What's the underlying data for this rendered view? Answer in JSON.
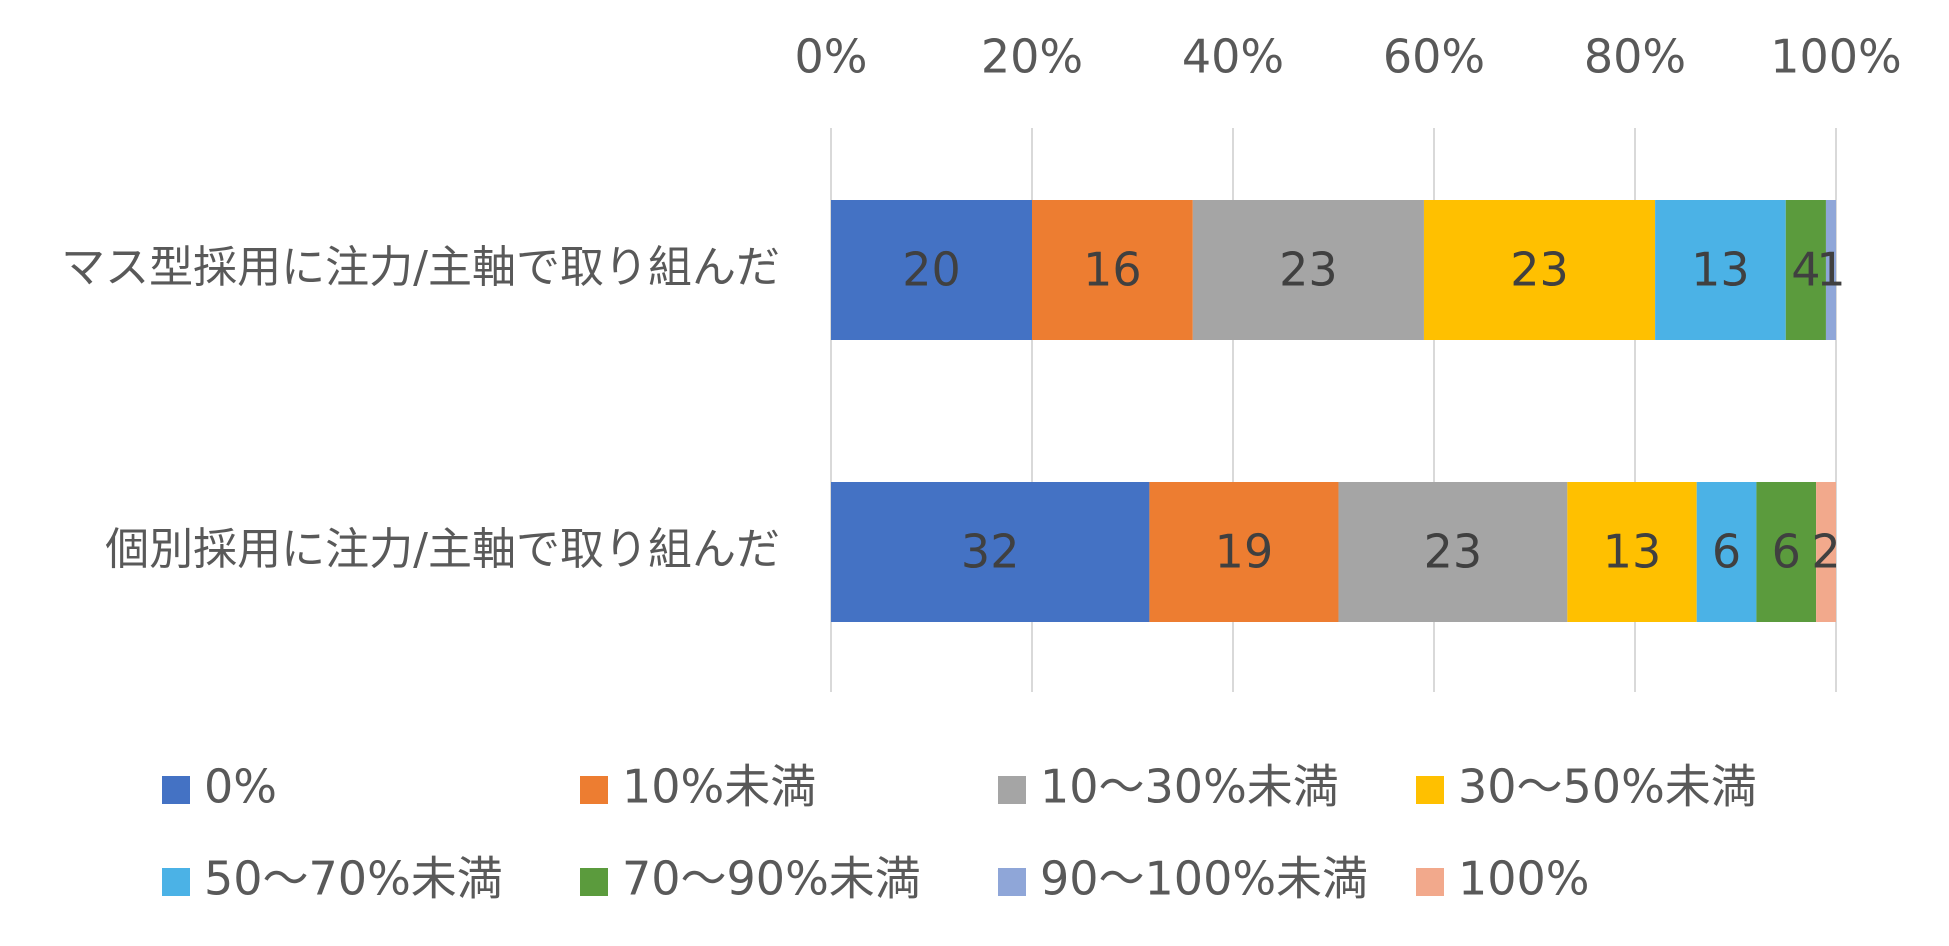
{
  "chart_data": {
    "type": "bar",
    "orientation": "horizontal",
    "stacked": "percent",
    "categories": [
      "マス型採用に注力/主軸で取り組んだ",
      "個別採用に注力/主軸で取り組んだ"
    ],
    "series": [
      {
        "name": "0%",
        "values": [
          20,
          32
        ],
        "color": "#4472C4"
      },
      {
        "name": "10%未満",
        "values": [
          16,
          19
        ],
        "color": "#ED7D31"
      },
      {
        "name": "10～30%未満",
        "values": [
          23,
          23
        ],
        "color": "#A5A5A5"
      },
      {
        "name": "30～50%未満",
        "values": [
          23,
          13
        ],
        "color": "#FFC000"
      },
      {
        "name": "50～70%未満",
        "values": [
          13,
          6
        ],
        "color": "#4BB2E6"
      },
      {
        "name": "70～90%未満",
        "values": [
          4,
          6
        ],
        "color": "#5B9B3D"
      },
      {
        "name": "90～100%未満",
        "values": [
          1,
          0
        ],
        "color": "#8FA6D8"
      },
      {
        "name": "100%",
        "values": [
          0,
          2
        ],
        "color": "#F2A98C"
      }
    ],
    "data_labels": [
      [
        "20",
        "16",
        "23",
        "23",
        "13",
        "4",
        "1",
        ""
      ],
      [
        "32",
        "19",
        "23",
        "13",
        "6",
        "6",
        "",
        "2"
      ]
    ],
    "x_ticks": [
      "0%",
      "20%",
      "40%",
      "60%",
      "80%",
      "100%"
    ],
    "xlim": [
      0,
      100
    ],
    "x_axis_position": "top",
    "grid": true,
    "legend_position": "bottom",
    "title": "",
    "xlabel": "",
    "ylabel": ""
  }
}
